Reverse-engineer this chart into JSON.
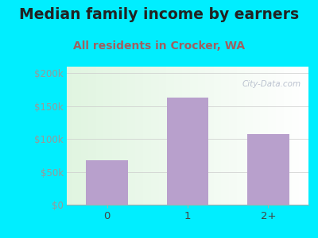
{
  "title": "Median family income by earners",
  "subtitle": "All residents in Crocker, WA",
  "categories": [
    "0",
    "1",
    "2+"
  ],
  "values": [
    68000,
    163000,
    107000
  ],
  "bar_color": "#b8a0cc",
  "title_fontsize": 13.5,
  "subtitle_fontsize": 10,
  "subtitle_color": "#a06060",
  "title_color": "#222222",
  "background_outer": "#00eeff",
  "ylim": [
    0,
    210000
  ],
  "yticks": [
    0,
    50000,
    100000,
    150000,
    200000
  ],
  "ytick_labels": [
    "$0",
    "$50k",
    "$100k",
    "$150k",
    "$200k"
  ],
  "watermark": "City-Data.com"
}
